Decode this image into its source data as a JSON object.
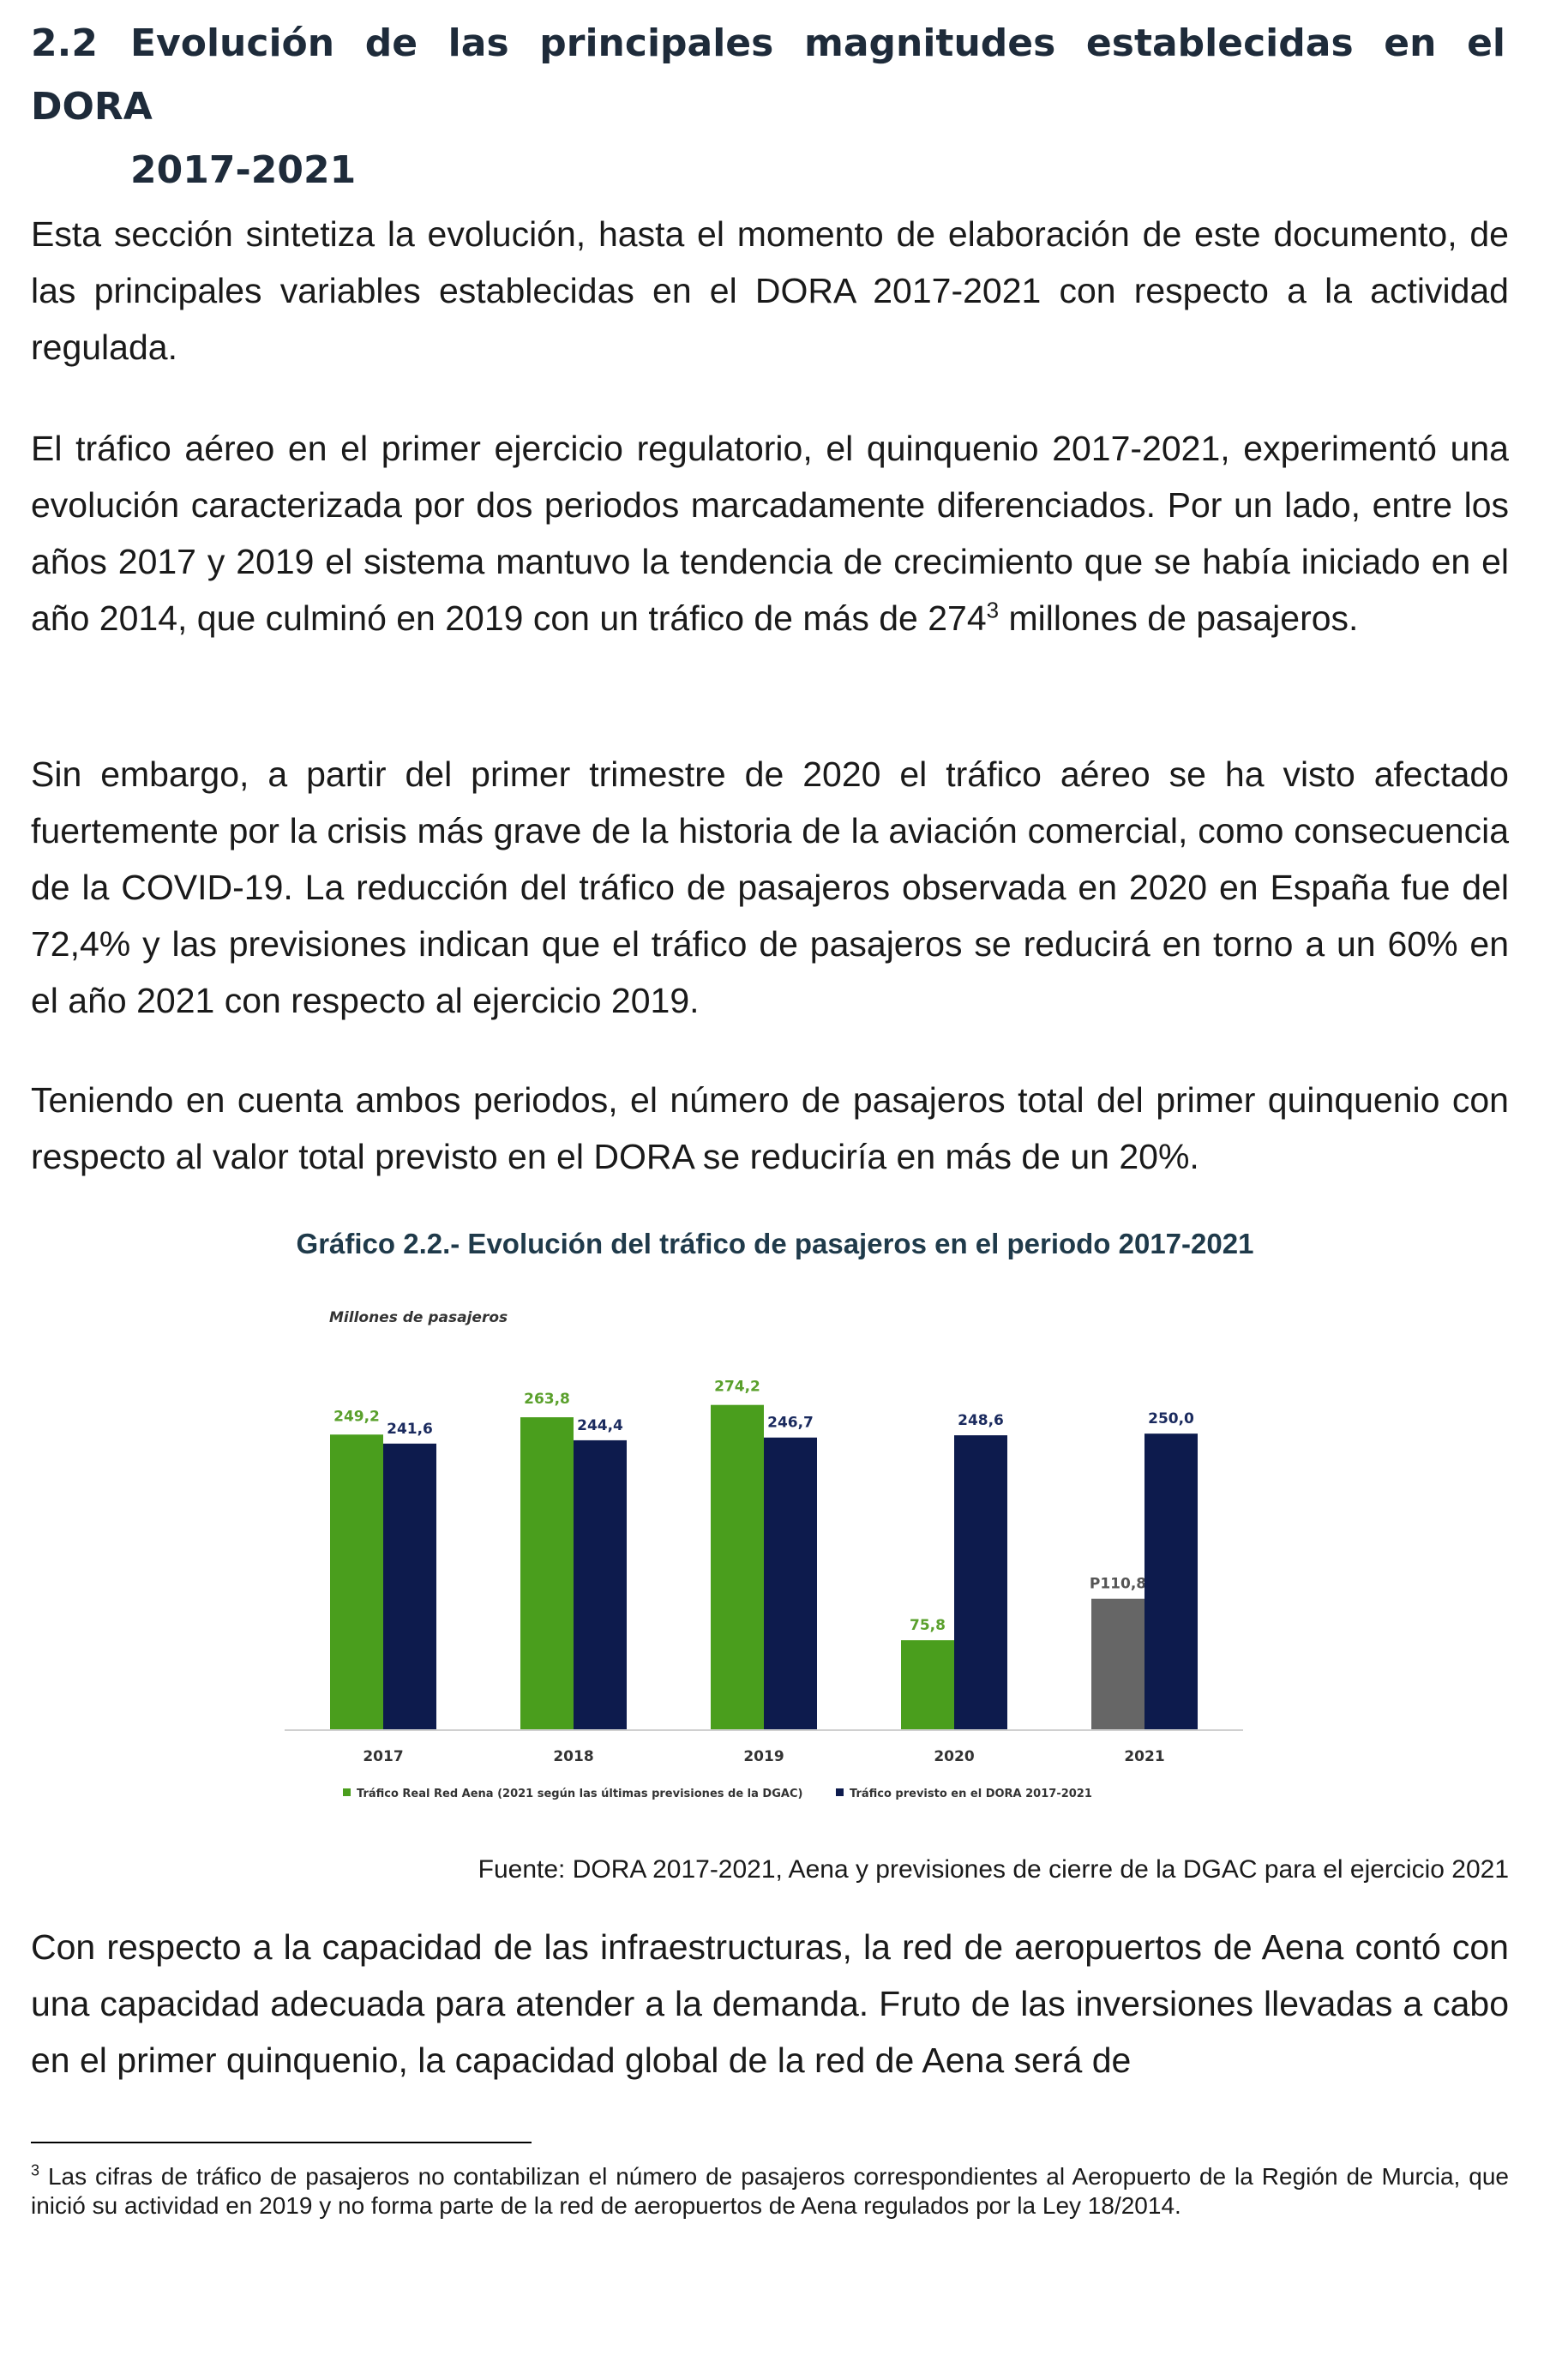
{
  "section": {
    "number": "2.2",
    "title_line1": "Evolución de las principales magnitudes establecidas en el DORA",
    "title_line2": "2017-2021"
  },
  "paragraphs": {
    "p1": "Esta sección sintetiza la evolución, hasta el momento de elaboración de este documento, de las principales variables establecidas en el DORA 2017-2021 con respecto a la actividad regulada.",
    "p2_before": "El tráfico aéreo en el primer ejercicio regulatorio, el quinquenio 2017-2021, experimentó una evolución caracterizada por dos periodos marcadamente diferenciados. Por un lado, entre los años 2017 y 2019 el sistema mantuvo la tendencia de crecimiento que se había iniciado en el año 2014, que culminó en 2019 con un tráfico de más de 274",
    "p2_sup": "3",
    "p2_after": " millones de pasajeros.",
    "p3": "Sin embargo, a partir del primer trimestre de 2020 el tráfico aéreo se ha visto afectado fuertemente por la crisis más grave de la historia de la aviación comercial, como consecuencia de la COVID-19. La reducción del tráfico de pasajeros observada en 2020 en España fue del 72,4% y las previsiones indican que el tráfico de pasajeros se reducirá en torno a un 60% en el año 2021 con respecto al ejercicio 2019.",
    "p4": "Teniendo en cuenta ambos periodos, el número de pasajeros total del primer quinquenio con respecto al valor total previsto en el DORA se reduciría en más de un 20%.",
    "p5": "Con respecto a la capacidad de las infraestructuras, la red de aeropuertos de Aena contó con una capacidad adecuada para atender a la demanda. Fruto de las inversiones llevadas a cabo en el primer quinquenio, la capacidad global de la red de Aena será de"
  },
  "figure": {
    "title": "Gráfico 2.2.- Evolución del tráfico de pasajeros en el periodo 2017-2021",
    "source": "Fuente: DORA 2017-2021, Aena y previsiones de cierre de la DGAC para el ejercicio 2021"
  },
  "chart_data": {
    "type": "bar",
    "ylabel": "Millones de pasajeros",
    "categories": [
      "2017",
      "2018",
      "2019",
      "2020",
      "2021"
    ],
    "series": [
      {
        "name": "Tráfico Real Red Aena (2021 según las últimas previsiones de la DGAC)",
        "values": [
          249.2,
          263.8,
          274.2,
          75.8,
          110.8
        ],
        "labels": [
          "249,2",
          "263,8",
          "274,2",
          "75,8",
          "P110,8"
        ],
        "color": "#4a9e1d",
        "forecast_color": "#666666",
        "forecast_index": 4
      },
      {
        "name": "Tráfico previsto en el DORA 2017-2021",
        "values": [
          241.6,
          244.4,
          246.7,
          248.6,
          250.0
        ],
        "labels": [
          "241,6",
          "244,4",
          "246,7",
          "248,6",
          "250,0"
        ],
        "color": "#0d1b4d"
      }
    ],
    "ylim": [
      0,
      300
    ],
    "grid": false,
    "legend_position": "bottom",
    "label_colors": {
      "real": "#5aa02c",
      "forecast": "#555555",
      "dora": "#1a2a5e"
    }
  },
  "footnote": {
    "mark": "3",
    "text": " Las cifras de tráfico de pasajeros no contabilizan el número de pasajeros correspondientes al Aeropuerto de la Región de Murcia, que inició su actividad en 2019 y no forma parte de la red de aeropuertos de Aena regulados por la Ley 18/2014."
  }
}
